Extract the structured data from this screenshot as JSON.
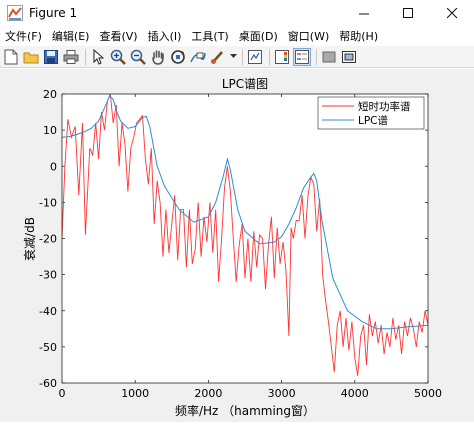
{
  "window": {
    "title": "Figure 1"
  },
  "menu": [
    "文件(F)",
    "编辑(E)",
    "查看(V)",
    "插入(I)",
    "工具(T)",
    "桌面(D)",
    "窗口(W)",
    "帮助(H)"
  ],
  "toolbar": [
    "new-figure",
    "open-file",
    "save",
    "print",
    "pointer",
    "zoom-in",
    "zoom-out",
    "pan",
    "rotate",
    "data-cursor",
    "brush",
    "link",
    "colorbar",
    "legend",
    "hide-plot-tools",
    "show-plot-tools"
  ],
  "colors": {
    "short_time_power_spectrum": "#ff3333",
    "lpc_spectrum": "#2a8fd6"
  },
  "chart_data": {
    "type": "line",
    "title": "LPC谱图",
    "xlabel": "频率/Hz  （hamming窗）",
    "ylabel": "衰减/dB",
    "xlim": [
      0,
      5000
    ],
    "ylim": [
      -60,
      20
    ],
    "xticks": [
      0,
      1000,
      2000,
      3000,
      4000,
      5000
    ],
    "yticks": [
      20,
      10,
      0,
      -10,
      -20,
      -30,
      -40,
      -50,
      -60
    ],
    "legend_position": "top-right",
    "series": [
      {
        "name": "短时功率谱",
        "x": [
          0,
          40,
          80,
          130,
          180,
          230,
          280,
          320,
          380,
          420,
          460,
          500,
          540,
          580,
          620,
          660,
          700,
          740,
          780,
          820,
          860,
          900,
          940,
          980,
          1020,
          1060,
          1100,
          1140,
          1180,
          1220,
          1260,
          1300,
          1340,
          1380,
          1420,
          1460,
          1500,
          1540,
          1580,
          1620,
          1660,
          1700,
          1740,
          1780,
          1820,
          1860,
          1900,
          1940,
          1980,
          2020,
          2060,
          2100,
          2140,
          2180,
          2220,
          2260,
          2300,
          2340,
          2380,
          2420,
          2460,
          2500,
          2540,
          2580,
          2620,
          2660,
          2700,
          2740,
          2780,
          2820,
          2860,
          2900,
          2940,
          2980,
          3020,
          3060,
          3100,
          3130,
          3160,
          3200,
          3240,
          3280,
          3320,
          3360,
          3400,
          3440,
          3480,
          3520,
          3560,
          3600,
          3640,
          3680,
          3720,
          3760,
          3800,
          3840,
          3880,
          3920,
          3960,
          4000,
          4040,
          4080,
          4120,
          4160,
          4200,
          4240,
          4280,
          4320,
          4360,
          4400,
          4440,
          4480,
          4520,
          4560,
          4600,
          4640,
          4680,
          4720,
          4760,
          4800,
          4840,
          4880,
          4920,
          4960,
          5000
        ],
        "y": [
          -20,
          0,
          13,
          8,
          11,
          -8,
          12,
          -19,
          5,
          3,
          12,
          2,
          15,
          10,
          18,
          20,
          12,
          17,
          0,
          12,
          6,
          -7,
          5,
          8,
          12,
          13,
          14,
          2,
          -5,
          5,
          -16,
          -4,
          -10,
          -25,
          -12,
          -24,
          -16,
          -8,
          -26,
          -12,
          -12,
          -28,
          -12,
          -27,
          -23,
          -10,
          -25,
          -14,
          -21,
          -10,
          -24,
          -12,
          -32,
          -20,
          -6,
          0,
          -7,
          -20,
          -32,
          -22,
          -16,
          -31,
          -20,
          -32,
          -18,
          -28,
          -19,
          -20,
          -34,
          -22,
          -14,
          -31,
          -17,
          -27,
          -21,
          -29,
          -47,
          -17,
          -20,
          -15,
          -15,
          -8,
          -20,
          -8,
          -3,
          -5,
          -18,
          -9,
          -30,
          -37,
          -43,
          -50,
          -57,
          -44,
          -40,
          -50,
          -42,
          -51,
          -43,
          -53,
          -58,
          -47,
          -44,
          -55,
          -41,
          -47,
          -43,
          -49,
          -44,
          -52,
          -46,
          -50,
          -42,
          -48,
          -44,
          -52,
          -43,
          -47,
          -42,
          -45,
          -50,
          -43,
          -46,
          -40,
          -44
        ]
      },
      {
        "name": "LPC谱",
        "x": [
          0,
          100,
          200,
          300,
          400,
          500,
          600,
          650,
          700,
          750,
          800,
          900,
          1000,
          1100,
          1150,
          1200,
          1300,
          1400,
          1600,
          1800,
          2000,
          2100,
          2200,
          2260,
          2300,
          2400,
          2500,
          2700,
          2900,
          3000,
          3100,
          3200,
          3300,
          3400,
          3440,
          3480,
          3550,
          3700,
          3900,
          4100,
          4300,
          4500,
          4700,
          5000
        ],
        "y": [
          8,
          8.2,
          8.8,
          9.5,
          10.5,
          12.5,
          17,
          19.5,
          18.5,
          15,
          12.5,
          10.5,
          11,
          13.5,
          13.8,
          11,
          0,
          -5.5,
          -12,
          -15.5,
          -14,
          -10,
          -3,
          2,
          -1,
          -12,
          -18,
          -21.5,
          -21,
          -19.5,
          -16,
          -11.5,
          -6,
          -3,
          -2,
          -4,
          -15,
          -31,
          -40,
          -43,
          -45,
          -45,
          -44.5,
          -44
        ]
      }
    ]
  }
}
